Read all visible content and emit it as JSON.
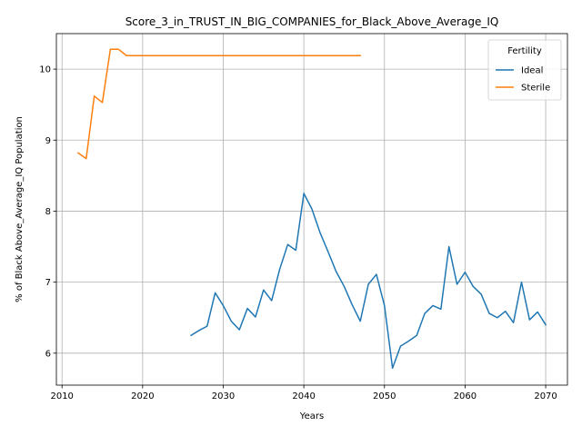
{
  "chart_data": {
    "type": "line",
    "title": "Score_3_in_TRUST_IN_BIG_COMPANIES_for_Black_Above_Average_IQ",
    "xlabel": "Years",
    "ylabel": "% of Black Above_Average_IQ Population",
    "xlim": [
      2009.3,
      2072.7
    ],
    "ylim": [
      5.55,
      10.5
    ],
    "xticks": [
      2010,
      2020,
      2030,
      2040,
      2050,
      2060,
      2070
    ],
    "yticks": [
      6,
      7,
      8,
      9,
      10
    ],
    "grid": true,
    "legend": {
      "title": "Fertility",
      "placement": "top-right"
    },
    "series": [
      {
        "name": "Ideal",
        "color": "#1f77b4",
        "x": [
          2026,
          2027,
          2028,
          2029,
          2030,
          2031,
          2032,
          2033,
          2034,
          2035,
          2036,
          2037,
          2038,
          2039,
          2040,
          2041,
          2042,
          2043,
          2044,
          2045,
          2046,
          2047,
          2048,
          2049,
          2050,
          2051,
          2052,
          2053,
          2054,
          2055,
          2056,
          2057,
          2058,
          2059,
          2060,
          2061,
          2062,
          2063,
          2064,
          2065,
          2066,
          2067,
          2068,
          2069,
          2070
        ],
        "y": [
          6.25,
          6.32,
          6.38,
          6.85,
          6.67,
          6.45,
          6.33,
          6.63,
          6.51,
          6.89,
          6.74,
          7.18,
          7.53,
          7.45,
          8.25,
          8.03,
          7.7,
          7.43,
          7.15,
          6.94,
          6.68,
          6.45,
          6.97,
          7.11,
          6.67,
          5.79,
          6.1,
          6.17,
          6.25,
          6.56,
          6.67,
          6.62,
          7.5,
          6.97,
          7.14,
          6.94,
          6.83,
          6.56,
          6.5,
          6.59,
          6.43,
          7.0,
          6.47,
          6.58,
          6.4
        ]
      },
      {
        "name": "Sterile",
        "color": "#ff7f0e",
        "x": [
          2012,
          2013,
          2014,
          2015,
          2016,
          2017,
          2018,
          2019,
          2020,
          2021,
          2022,
          2023,
          2024,
          2025,
          2026,
          2027,
          2028,
          2029,
          2030,
          2031,
          2032,
          2033,
          2034,
          2035,
          2036,
          2037,
          2038,
          2039,
          2040,
          2041,
          2042,
          2043,
          2044,
          2045,
          2046,
          2047
        ],
        "y": [
          8.82,
          8.74,
          9.62,
          9.53,
          10.28,
          10.28,
          10.19,
          10.19,
          10.19,
          10.19,
          10.19,
          10.19,
          10.19,
          10.19,
          10.19,
          10.19,
          10.19,
          10.19,
          10.19,
          10.19,
          10.19,
          10.19,
          10.19,
          10.19,
          10.19,
          10.19,
          10.19,
          10.19,
          10.19,
          10.19,
          10.19,
          10.19,
          10.19,
          10.19,
          10.19,
          10.19
        ]
      }
    ]
  }
}
